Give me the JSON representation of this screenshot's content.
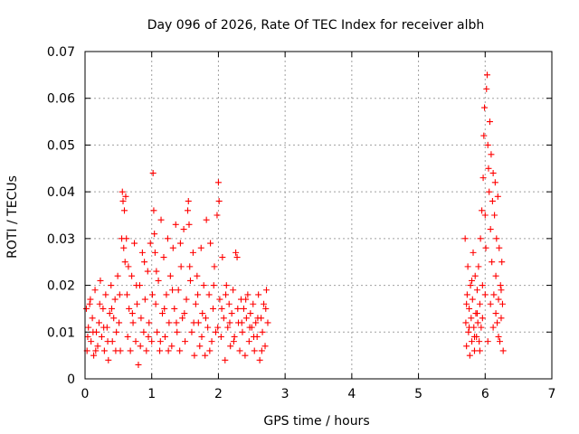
{
  "chart_data": {
    "type": "scatter",
    "title": "Day 096 of 2026, Rate Of TEC Index for receiver albh",
    "xlabel": "GPS time / hours",
    "ylabel": "ROTI / TECUs",
    "xlim": [
      0,
      7
    ],
    "ylim": [
      0,
      0.07
    ],
    "xticks": [
      "0",
      "1",
      "2",
      "3",
      "4",
      "5",
      "6",
      "7"
    ],
    "yticks": [
      "0",
      "0.01",
      "0.02",
      "0.03",
      "0.04",
      "0.05",
      "0.06",
      "0.07"
    ],
    "grid": true,
    "marker": "+",
    "marker_color": "#ff0000",
    "series": [
      {
        "name": "ROTI",
        "color": "#ff0000",
        "points": [
          [
            0.02,
            0.015
          ],
          [
            0.03,
            0.006
          ],
          [
            0.05,
            0.011
          ],
          [
            0.07,
            0.016
          ],
          [
            0.09,
            0.008
          ],
          [
            0.11,
            0.013
          ],
          [
            0.13,
            0.005
          ],
          [
            0.15,
            0.019
          ],
          [
            0.17,
            0.01
          ],
          [
            0.19,
            0.007
          ],
          [
            0.21,
            0.012
          ],
          [
            0.23,
            0.021
          ],
          [
            0.25,
            0.009
          ],
          [
            0.27,
            0.015
          ],
          [
            0.29,
            0.006
          ],
          [
            0.31,
            0.018
          ],
          [
            0.33,
            0.011
          ],
          [
            0.35,
            0.004
          ],
          [
            0.37,
            0.014
          ],
          [
            0.39,
            0.02
          ],
          [
            0.41,
            0.008
          ],
          [
            0.43,
            0.013
          ],
          [
            0.45,
            0.017
          ],
          [
            0.47,
            0.01
          ],
          [
            0.49,
            0.022
          ],
          [
            0.51,
            0.012
          ],
          [
            0.53,
            0.006
          ],
          [
            0.55,
            0.03
          ],
          [
            0.56,
            0.04
          ],
          [
            0.57,
            0.038
          ],
          [
            0.58,
            0.028
          ],
          [
            0.59,
            0.036
          ],
          [
            0.6,
            0.025
          ],
          [
            0.61,
            0.039
          ],
          [
            0.62,
            0.03
          ],
          [
            0.63,
            0.018
          ],
          [
            0.64,
            0.009
          ],
          [
            0.66,
            0.015
          ],
          [
            0.68,
            0.006
          ],
          [
            0.7,
            0.022
          ],
          [
            0.72,
            0.012
          ],
          [
            0.74,
            0.029
          ],
          [
            0.76,
            0.008
          ],
          [
            0.78,
            0.016
          ],
          [
            0.8,
            0.003
          ],
          [
            0.82,
            0.02
          ],
          [
            0.84,
            0.013
          ],
          [
            0.86,
            0.027
          ],
          [
            0.88,
            0.01
          ],
          [
            0.9,
            0.017
          ],
          [
            0.92,
            0.006
          ],
          [
            0.94,
            0.023
          ],
          [
            0.96,
            0.012
          ],
          [
            0.98,
            0.029
          ],
          [
            1.0,
            0.008
          ],
          [
            1.02,
            0.044
          ],
          [
            1.03,
            0.036
          ],
          [
            1.04,
            0.031
          ],
          [
            1.05,
            0.027
          ],
          [
            1.06,
            0.016
          ],
          [
            1.08,
            0.01
          ],
          [
            1.1,
            0.021
          ],
          [
            1.12,
            0.006
          ],
          [
            1.14,
            0.034
          ],
          [
            1.16,
            0.014
          ],
          [
            1.18,
            0.026
          ],
          [
            1.2,
            0.009
          ],
          [
            1.22,
            0.018
          ],
          [
            1.24,
            0.03
          ],
          [
            1.26,
            0.012
          ],
          [
            1.28,
            0.022
          ],
          [
            1.3,
            0.007
          ],
          [
            1.32,
            0.028
          ],
          [
            1.34,
            0.015
          ],
          [
            1.36,
            0.033
          ],
          [
            1.38,
            0.01
          ],
          [
            1.4,
            0.019
          ],
          [
            1.42,
            0.006
          ],
          [
            1.44,
            0.024
          ],
          [
            1.46,
            0.013
          ],
          [
            1.48,
            0.032
          ],
          [
            1.5,
            0.008
          ],
          [
            1.52,
            0.017
          ],
          [
            1.54,
            0.036
          ],
          [
            1.55,
            0.038
          ],
          [
            1.56,
            0.033
          ],
          [
            1.58,
            0.021
          ],
          [
            1.6,
            0.01
          ],
          [
            1.62,
            0.027
          ],
          [
            1.64,
            0.005
          ],
          [
            1.66,
            0.016
          ],
          [
            1.68,
            0.022
          ],
          [
            1.7,
            0.012
          ],
          [
            1.72,
            0.007
          ],
          [
            1.74,
            0.028
          ],
          [
            1.76,
            0.014
          ],
          [
            1.78,
            0.02
          ],
          [
            1.8,
            0.005
          ],
          [
            1.82,
            0.034
          ],
          [
            1.84,
            0.011
          ],
          [
            1.86,
            0.018
          ],
          [
            1.88,
            0.029
          ],
          [
            1.9,
            0.008
          ],
          [
            1.92,
            0.015
          ],
          [
            1.94,
            0.024
          ],
          [
            1.96,
            0.01
          ],
          [
            1.98,
            0.035
          ],
          [
            2.0,
            0.042
          ],
          [
            2.01,
            0.038
          ],
          [
            2.02,
            0.017
          ],
          [
            2.04,
            0.009
          ],
          [
            2.06,
            0.026
          ],
          [
            2.08,
            0.013
          ],
          [
            2.1,
            0.004
          ],
          [
            2.12,
            0.02
          ],
          [
            2.14,
            0.011
          ],
          [
            2.16,
            0.016
          ],
          [
            2.18,
            0.007
          ],
          [
            2.2,
            0.014
          ],
          [
            2.22,
            0.019
          ],
          [
            2.24,
            0.009
          ],
          [
            2.26,
            0.027
          ],
          [
            2.28,
            0.026
          ],
          [
            2.3,
            0.012
          ],
          [
            2.32,
            0.006
          ],
          [
            2.34,
            0.017
          ],
          [
            2.36,
            0.01
          ],
          [
            2.38,
            0.015
          ],
          [
            2.4,
            0.005
          ],
          [
            2.42,
            0.013
          ],
          [
            2.44,
            0.018
          ],
          [
            2.46,
            0.008
          ],
          [
            2.48,
            0.014
          ],
          [
            2.5,
            0.011
          ],
          [
            2.52,
            0.016
          ],
          [
            2.54,
            0.006
          ],
          [
            2.56,
            0.012
          ],
          [
            2.58,
            0.009
          ],
          [
            2.6,
            0.018
          ],
          [
            2.62,
            0.004
          ],
          [
            2.64,
            0.013
          ],
          [
            2.66,
            0.01
          ],
          [
            2.68,
            0.016
          ],
          [
            2.7,
            0.007
          ],
          [
            2.72,
            0.019
          ],
          [
            2.74,
            0.012
          ],
          [
            0.04,
            0.009
          ],
          [
            0.08,
            0.017
          ],
          [
            0.12,
            0.01
          ],
          [
            0.16,
            0.006
          ],
          [
            0.22,
            0.016
          ],
          [
            0.28,
            0.011
          ],
          [
            0.34,
            0.008
          ],
          [
            0.4,
            0.015
          ],
          [
            0.46,
            0.006
          ],
          [
            0.52,
            0.018
          ],
          [
            0.65,
            0.024
          ],
          [
            0.71,
            0.014
          ],
          [
            0.77,
            0.02
          ],
          [
            0.83,
            0.007
          ],
          [
            0.89,
            0.025
          ],
          [
            0.95,
            0.009
          ],
          [
            1.01,
            0.018
          ],
          [
            1.07,
            0.023
          ],
          [
            1.13,
            0.008
          ],
          [
            1.19,
            0.015
          ],
          [
            1.25,
            0.006
          ],
          [
            1.31,
            0.019
          ],
          [
            1.37,
            0.012
          ],
          [
            1.43,
            0.029
          ],
          [
            1.49,
            0.014
          ],
          [
            1.57,
            0.024
          ],
          [
            1.63,
            0.012
          ],
          [
            1.69,
            0.018
          ],
          [
            1.75,
            0.009
          ],
          [
            1.81,
            0.013
          ],
          [
            1.87,
            0.006
          ],
          [
            1.93,
            0.02
          ],
          [
            1.99,
            0.011
          ],
          [
            2.05,
            0.015
          ],
          [
            2.11,
            0.018
          ],
          [
            2.17,
            0.012
          ],
          [
            2.23,
            0.008
          ],
          [
            2.29,
            0.015
          ],
          [
            2.35,
            0.012
          ],
          [
            2.41,
            0.017
          ],
          [
            2.47,
            0.011
          ],
          [
            2.53,
            0.009
          ],
          [
            2.59,
            0.013
          ],
          [
            2.65,
            0.006
          ],
          [
            2.71,
            0.015
          ],
          [
            5.7,
            0.03
          ],
          [
            5.71,
            0.012
          ],
          [
            5.72,
            0.007
          ],
          [
            5.73,
            0.018
          ],
          [
            5.74,
            0.024
          ],
          [
            5.75,
            0.01
          ],
          [
            5.76,
            0.015
          ],
          [
            5.77,
            0.005
          ],
          [
            5.78,
            0.02
          ],
          [
            5.79,
            0.013
          ],
          [
            5.8,
            0.008
          ],
          [
            5.81,
            0.017
          ],
          [
            5.82,
            0.027
          ],
          [
            5.83,
            0.011
          ],
          [
            5.84,
            0.006
          ],
          [
            5.85,
            0.022
          ],
          [
            5.86,
            0.014
          ],
          [
            5.87,
            0.009
          ],
          [
            5.88,
            0.019
          ],
          [
            5.89,
            0.012
          ],
          [
            5.9,
            0.024
          ],
          [
            5.91,
            0.008
          ],
          [
            5.92,
            0.016
          ],
          [
            5.93,
            0.03
          ],
          [
            5.94,
            0.011
          ],
          [
            5.95,
            0.036
          ],
          [
            5.96,
            0.02
          ],
          [
            5.97,
            0.043
          ],
          [
            5.98,
            0.052
          ],
          [
            5.99,
            0.058
          ],
          [
            6.0,
            0.035
          ],
          [
            6.01,
            0.028
          ],
          [
            6.02,
            0.062
          ],
          [
            6.03,
            0.065
          ],
          [
            6.04,
            0.05
          ],
          [
            6.05,
            0.045
          ],
          [
            6.06,
            0.04
          ],
          [
            6.07,
            0.055
          ],
          [
            6.08,
            0.032
          ],
          [
            6.09,
            0.048
          ],
          [
            6.1,
            0.025
          ],
          [
            6.11,
            0.038
          ],
          [
            6.12,
            0.044
          ],
          [
            6.13,
            0.018
          ],
          [
            6.14,
            0.035
          ],
          [
            6.15,
            0.042
          ],
          [
            6.16,
            0.022
          ],
          [
            6.17,
            0.03
          ],
          [
            6.18,
            0.012
          ],
          [
            6.19,
            0.039
          ],
          [
            6.2,
            0.017
          ],
          [
            6.21,
            0.028
          ],
          [
            6.22,
            0.008
          ],
          [
            6.23,
            0.02
          ],
          [
            6.24,
            0.013
          ],
          [
            6.25,
            0.025
          ],
          [
            6.26,
            0.016
          ],
          [
            6.27,
            0.006
          ],
          [
            5.72,
            0.016
          ],
          [
            5.76,
            0.011
          ],
          [
            5.8,
            0.021
          ],
          [
            5.84,
            0.009
          ],
          [
            5.88,
            0.014
          ],
          [
            5.92,
            0.006
          ],
          [
            5.96,
            0.013
          ],
          [
            6.0,
            0.018
          ],
          [
            6.04,
            0.008
          ],
          [
            6.08,
            0.016
          ],
          [
            6.12,
            0.011
          ],
          [
            6.16,
            0.014
          ],
          [
            6.2,
            0.009
          ],
          [
            6.24,
            0.019
          ]
        ]
      }
    ]
  }
}
